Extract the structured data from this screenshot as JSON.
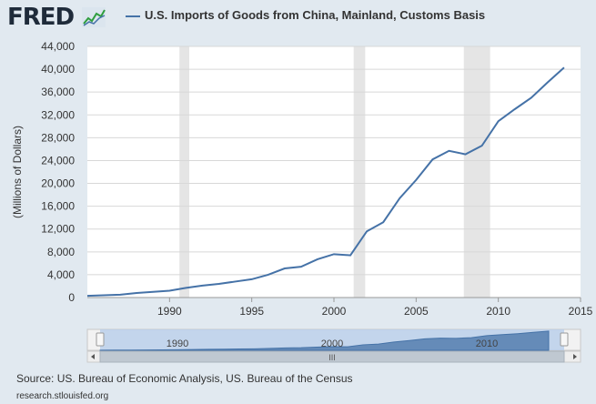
{
  "header": {
    "logo_text": "FRED",
    "logo_icon": "line-chart-icon",
    "legend_label": "U.S. Imports of Goods from China, Mainland, Customs Basis"
  },
  "colors": {
    "series": "#4572a7",
    "recession": "#e5e5e5",
    "background": "#e1e9f0",
    "plot": "#ffffff"
  },
  "footer": {
    "source": "Source: US. Bureau of Economic Analysis, US. Bureau of the Census",
    "site": "research.stlouisfed.org"
  },
  "navigator": {
    "tick_labels": [
      "1990",
      "2000",
      "2010"
    ],
    "scroll_grip": "III"
  },
  "chart_data": {
    "type": "line",
    "title": "",
    "xlabel": "",
    "ylabel": "(Millions of Dollars)",
    "xlim": [
      1985,
      2015
    ],
    "ylim": [
      0,
      44000
    ],
    "x_ticks": [
      1990,
      1995,
      2000,
      2005,
      2010,
      2015
    ],
    "y_ticks": [
      0,
      4000,
      8000,
      12000,
      16000,
      20000,
      24000,
      28000,
      32000,
      36000,
      40000,
      44000
    ],
    "y_tick_labels": [
      "0",
      "4,000",
      "8,000",
      "12,000",
      "16,000",
      "20,000",
      "24,000",
      "28,000",
      "32,000",
      "36,000",
      "40,000",
      "44,000"
    ],
    "grid": true,
    "legend": "top",
    "recessions": [
      [
        1990.6,
        1991.2
      ],
      [
        2001.2,
        2001.9
      ],
      [
        2007.9,
        2009.5
      ]
    ],
    "series": [
      {
        "name": "U.S. Imports of Goods from China, Mainland, Customs Basis",
        "x": [
          1985,
          1986,
          1987,
          1988,
          1989,
          1990,
          1991,
          1992,
          1993,
          1994,
          1995,
          1996,
          1997,
          1998,
          1999,
          2000,
          2001,
          2002,
          2003,
          2004,
          2005,
          2006,
          2007,
          2008,
          2009,
          2010,
          2011,
          2012,
          2013,
          2014
        ],
        "values": [
          300,
          400,
          500,
          800,
          1000,
          1200,
          1700,
          2100,
          2400,
          2800,
          3200,
          4000,
          5100,
          5400,
          6700,
          7600,
          7400,
          11600,
          13200,
          17400,
          20600,
          24200,
          25700,
          25100,
          26600,
          30900,
          33000,
          35000,
          37700,
          40300
        ]
      }
    ]
  }
}
